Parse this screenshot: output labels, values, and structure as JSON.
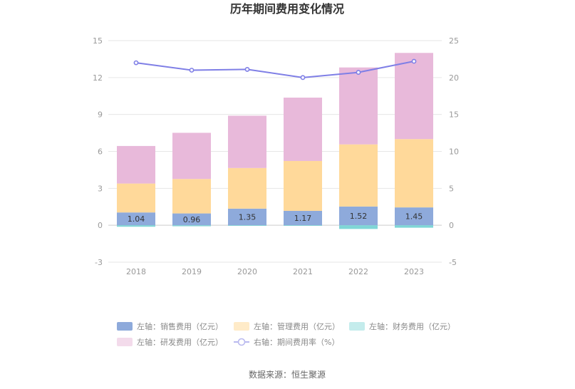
{
  "chart_data": {
    "type": "bar",
    "stacked": true,
    "title": "历年期间费用变化情况",
    "categories": [
      "2018",
      "2019",
      "2020",
      "2021",
      "2022",
      "2023"
    ],
    "y_left": {
      "min": -3,
      "max": 15,
      "ticks": [
        "-3",
        "0",
        "3",
        "6",
        "9",
        "12",
        "15"
      ]
    },
    "y_right": {
      "min": -5,
      "max": 25,
      "ticks": [
        "-5",
        "0",
        "5",
        "10",
        "15",
        "20",
        "25"
      ]
    },
    "series": [
      {
        "name": "左轴：销售费用（亿元）",
        "type": "bar",
        "axis": "left",
        "color": "#8eaadb",
        "values": [
          1.04,
          0.96,
          1.35,
          1.17,
          1.52,
          1.45
        ],
        "labels": [
          "1.04",
          "0.96",
          "1.35",
          "1.17",
          "1.52",
          "1.45"
        ]
      },
      {
        "name": "左轴：管理费用（亿元）",
        "type": "bar",
        "axis": "left",
        "color": "#ffd99a",
        "values": [
          2.35,
          2.8,
          3.3,
          4.05,
          5.05,
          5.55
        ]
      },
      {
        "name": "左轴：财务费用（亿元）",
        "type": "bar",
        "axis": "left",
        "color": "#7fd6d6",
        "values": [
          -0.12,
          -0.08,
          -0.05,
          -0.05,
          -0.3,
          -0.2
        ]
      },
      {
        "name": "左轴：研发费用（亿元）",
        "type": "bar",
        "axis": "left",
        "color": "#e8b9da",
        "values": [
          3.05,
          3.75,
          4.25,
          5.15,
          6.25,
          7.0
        ]
      },
      {
        "name": "右轴：期间费用率（%）",
        "type": "line",
        "axis": "right",
        "color": "#7f7fe6",
        "values": [
          22.0,
          21.0,
          21.1,
          20.0,
          20.7,
          22.2
        ]
      }
    ],
    "grid": true,
    "legend_position": "bottom"
  },
  "source": "数据来源：恒生聚源"
}
